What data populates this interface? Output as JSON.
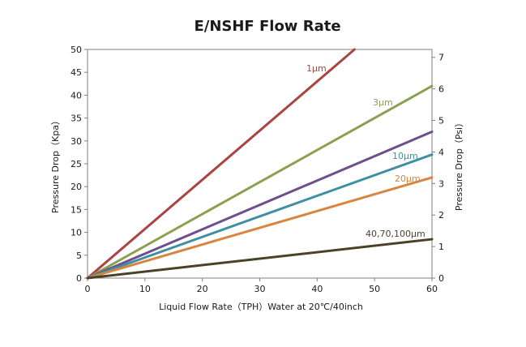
{
  "chart_data": {
    "type": "line",
    "title": "E/NSHF Flow Rate",
    "xlabel": "Liquid Flow Rate（TPH）Water at 20℃/40inch",
    "ylabel": "Pressure Drop（Kpa）",
    "y2label": "Pressure Drop（Psi）",
    "xlim": [
      0,
      60
    ],
    "ylim": [
      0,
      50
    ],
    "y2lim": [
      0,
      7.25
    ],
    "x_ticks": [
      "0",
      "10",
      "20",
      "30",
      "40",
      "50",
      "60"
    ],
    "y_ticks": [
      "0",
      "5",
      "10",
      "15",
      "20",
      "25",
      "30",
      "35",
      "40",
      "45",
      "50"
    ],
    "y2_ticks": [
      "0",
      "1",
      "2",
      "3",
      "4",
      "5",
      "6",
      "7"
    ],
    "grid": false,
    "legend": "inline labels",
    "series": [
      {
        "name": "1μm",
        "color": "#a94442",
        "x": [
          0,
          46.5
        ],
        "values": [
          0,
          50
        ]
      },
      {
        "name": "3μm",
        "color": "#8aa050",
        "x": [
          0,
          60
        ],
        "values": [
          0,
          42
        ]
      },
      {
        "name": "",
        "color": "#6e4e8c",
        "x": [
          0,
          60
        ],
        "values": [
          0,
          32
        ]
      },
      {
        "name": "10μm",
        "color": "#3f8fa3",
        "x": [
          0,
          60
        ],
        "values": [
          0,
          27
        ]
      },
      {
        "name": "20μm",
        "color": "#d98540",
        "x": [
          0,
          60
        ],
        "values": [
          0,
          22
        ]
      },
      {
        "name": "40,70,100μm",
        "color": "#4a4228",
        "x": [
          0,
          60
        ],
        "values": [
          0,
          8.5
        ]
      }
    ]
  }
}
